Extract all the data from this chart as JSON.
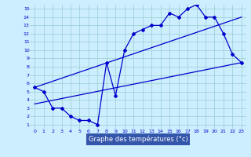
{
  "xlabel": "Graphe des températures (°c)",
  "background_color": "#cceeff",
  "grid_color": "#99cccc",
  "line_color": "#0000cc",
  "axis_bottom_color": "#3355aa",
  "xlim": [
    -0.5,
    23.5
  ],
  "ylim": [
    0.5,
    15.5
  ],
  "xticks": [
    0,
    1,
    2,
    3,
    4,
    5,
    6,
    7,
    8,
    9,
    10,
    11,
    12,
    13,
    14,
    15,
    16,
    17,
    18,
    19,
    20,
    21,
    22,
    23
  ],
  "yticks": [
    1,
    2,
    3,
    4,
    5,
    6,
    7,
    8,
    9,
    10,
    11,
    12,
    13,
    14,
    15
  ],
  "curve1_x": [
    0,
    1,
    2,
    3,
    4,
    5,
    6,
    7,
    8,
    9,
    10,
    11,
    12,
    13,
    14,
    15,
    16,
    17,
    18,
    19,
    20,
    21,
    22,
    23
  ],
  "curve1_y": [
    5.5,
    5.0,
    3.0,
    3.0,
    2.0,
    1.5,
    1.5,
    1.0,
    8.5,
    4.5,
    10.0,
    12.0,
    12.5,
    13.0,
    13.0,
    14.5,
    14.0,
    15.0,
    15.5,
    14.0,
    14.0,
    12.0,
    9.5,
    8.5
  ],
  "trend1_x": [
    0,
    23
  ],
  "trend1_y": [
    3.5,
    8.5
  ],
  "trend2_x": [
    0,
    23
  ],
  "trend2_y": [
    5.5,
    14.0
  ]
}
